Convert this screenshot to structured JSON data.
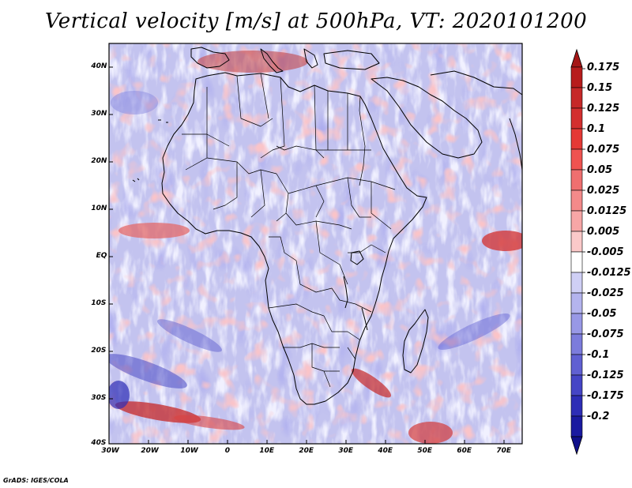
{
  "title": "Vertical velocity [m/s] at 500hPa, VT: 2020101200",
  "credit": "GrADS: IGES/COLA",
  "lat_labels": [
    "40N",
    "30N",
    "20N",
    "10N",
    "EQ",
    "10S",
    "20S",
    "30S",
    "40S"
  ],
  "lon_labels": [
    "30W",
    "20W",
    "10W",
    "0",
    "10E",
    "20E",
    "30E",
    "40E",
    "50E",
    "60E",
    "70E"
  ],
  "colorbar": {
    "labels": [
      "0.175",
      "0.15",
      "0.125",
      "0.1",
      "0.075",
      "0.05",
      "0.025",
      "0.0125",
      "0.005",
      "-0.005",
      "-0.0125",
      "-0.025",
      "-0.05",
      "-0.075",
      "-0.1",
      "-0.125",
      "-0.175",
      "-0.2"
    ],
    "colors": [
      "#b71c1c",
      "#c62828",
      "#d32f2f",
      "#e53935",
      "#ef5350",
      "#ef6f6f",
      "#f48a8a",
      "#f7a6a6",
      "#fbc9c9",
      "#ffffff",
      "#cfcff5",
      "#b4b4ee",
      "#9898e6",
      "#7c7cdc",
      "#6060d2",
      "#4545c6",
      "#2d2db6",
      "#1a1aa0"
    ],
    "top_arrow_color": "#a51616",
    "bottom_arrow_color": "#10108a"
  },
  "field_colors": {
    "ocean_base": "#c3c3ef",
    "land_base": "#d9d6f1",
    "strong_up": "#3a3ac0",
    "strong_down": "#c02020"
  }
}
